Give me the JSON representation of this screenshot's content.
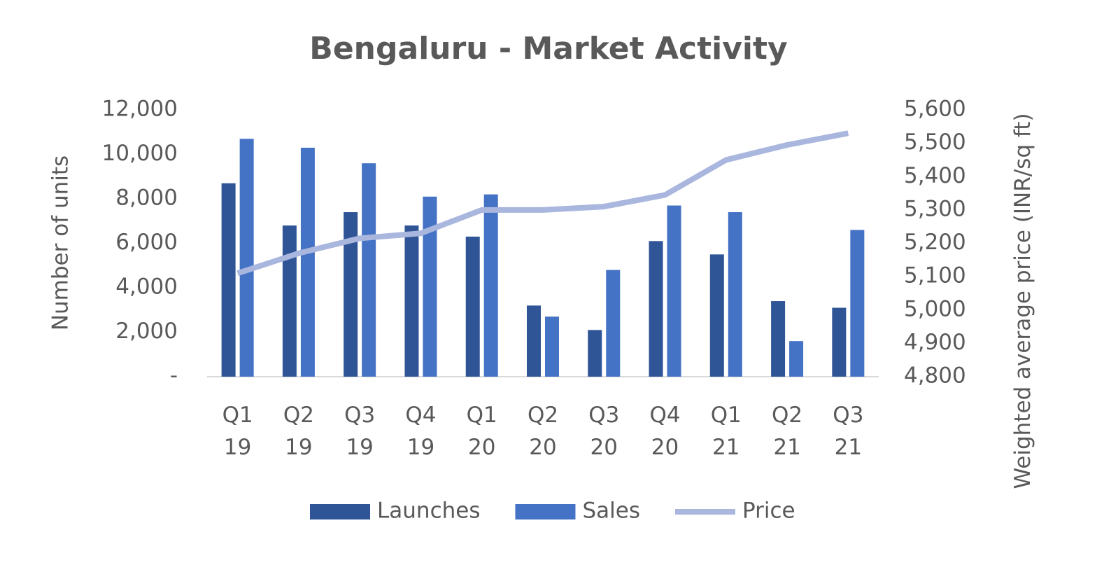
{
  "chart_data": {
    "type": "bar-line",
    "title": "Bengaluru - Market Activity",
    "y_label": "Number of units",
    "y2_label": "Weighted average price (INR/sq ft)",
    "categories": [
      "Q1 19",
      "Q2 19",
      "Q3 19",
      "Q4 19",
      "Q1 20",
      "Q2 20",
      "Q3 20",
      "Q4 20",
      "Q1 21",
      "Q2 21",
      "Q3 21"
    ],
    "series": [
      {
        "name": "Launches",
        "type": "bar",
        "color": "#2f5597",
        "values": [
          8700,
          6800,
          7400,
          6800,
          6300,
          3200,
          2100,
          6100,
          5500,
          3400,
          3100
        ]
      },
      {
        "name": "Sales",
        "type": "bar",
        "color": "#4472c4",
        "values": [
          10700,
          10300,
          9600,
          8100,
          8200,
          2700,
          4800,
          7700,
          7400,
          1600,
          6600
        ]
      },
      {
        "name": "Price",
        "type": "line",
        "axis": "y2",
        "color": "#a9b6de",
        "values": [
          5110,
          5170,
          5215,
          5230,
          5300,
          5300,
          5310,
          5345,
          5450,
          5495,
          5530
        ]
      }
    ],
    "ylim": [
      0,
      12000
    ],
    "yticks": [
      {
        "value": 0,
        "label": "-"
      },
      {
        "value": 2000,
        "label": "2,000"
      },
      {
        "value": 4000,
        "label": "4,000"
      },
      {
        "value": 6000,
        "label": "6,000"
      },
      {
        "value": 8000,
        "label": "8,000"
      },
      {
        "value": 10000,
        "label": "10,000"
      },
      {
        "value": 12000,
        "label": "12,000"
      }
    ],
    "y2lim": [
      4800,
      5600
    ],
    "y2ticks": [
      {
        "value": 4800,
        "label": "4,800"
      },
      {
        "value": 4900,
        "label": "4,900"
      },
      {
        "value": 5000,
        "label": "5,000"
      },
      {
        "value": 5100,
        "label": "5,100"
      },
      {
        "value": 5200,
        "label": "5,200"
      },
      {
        "value": 5300,
        "label": "5,300"
      },
      {
        "value": 5400,
        "label": "5,400"
      },
      {
        "value": 5500,
        "label": "5,500"
      },
      {
        "value": 5600,
        "label": "5,600"
      }
    ],
    "grid": false,
    "legend": "bottom"
  }
}
